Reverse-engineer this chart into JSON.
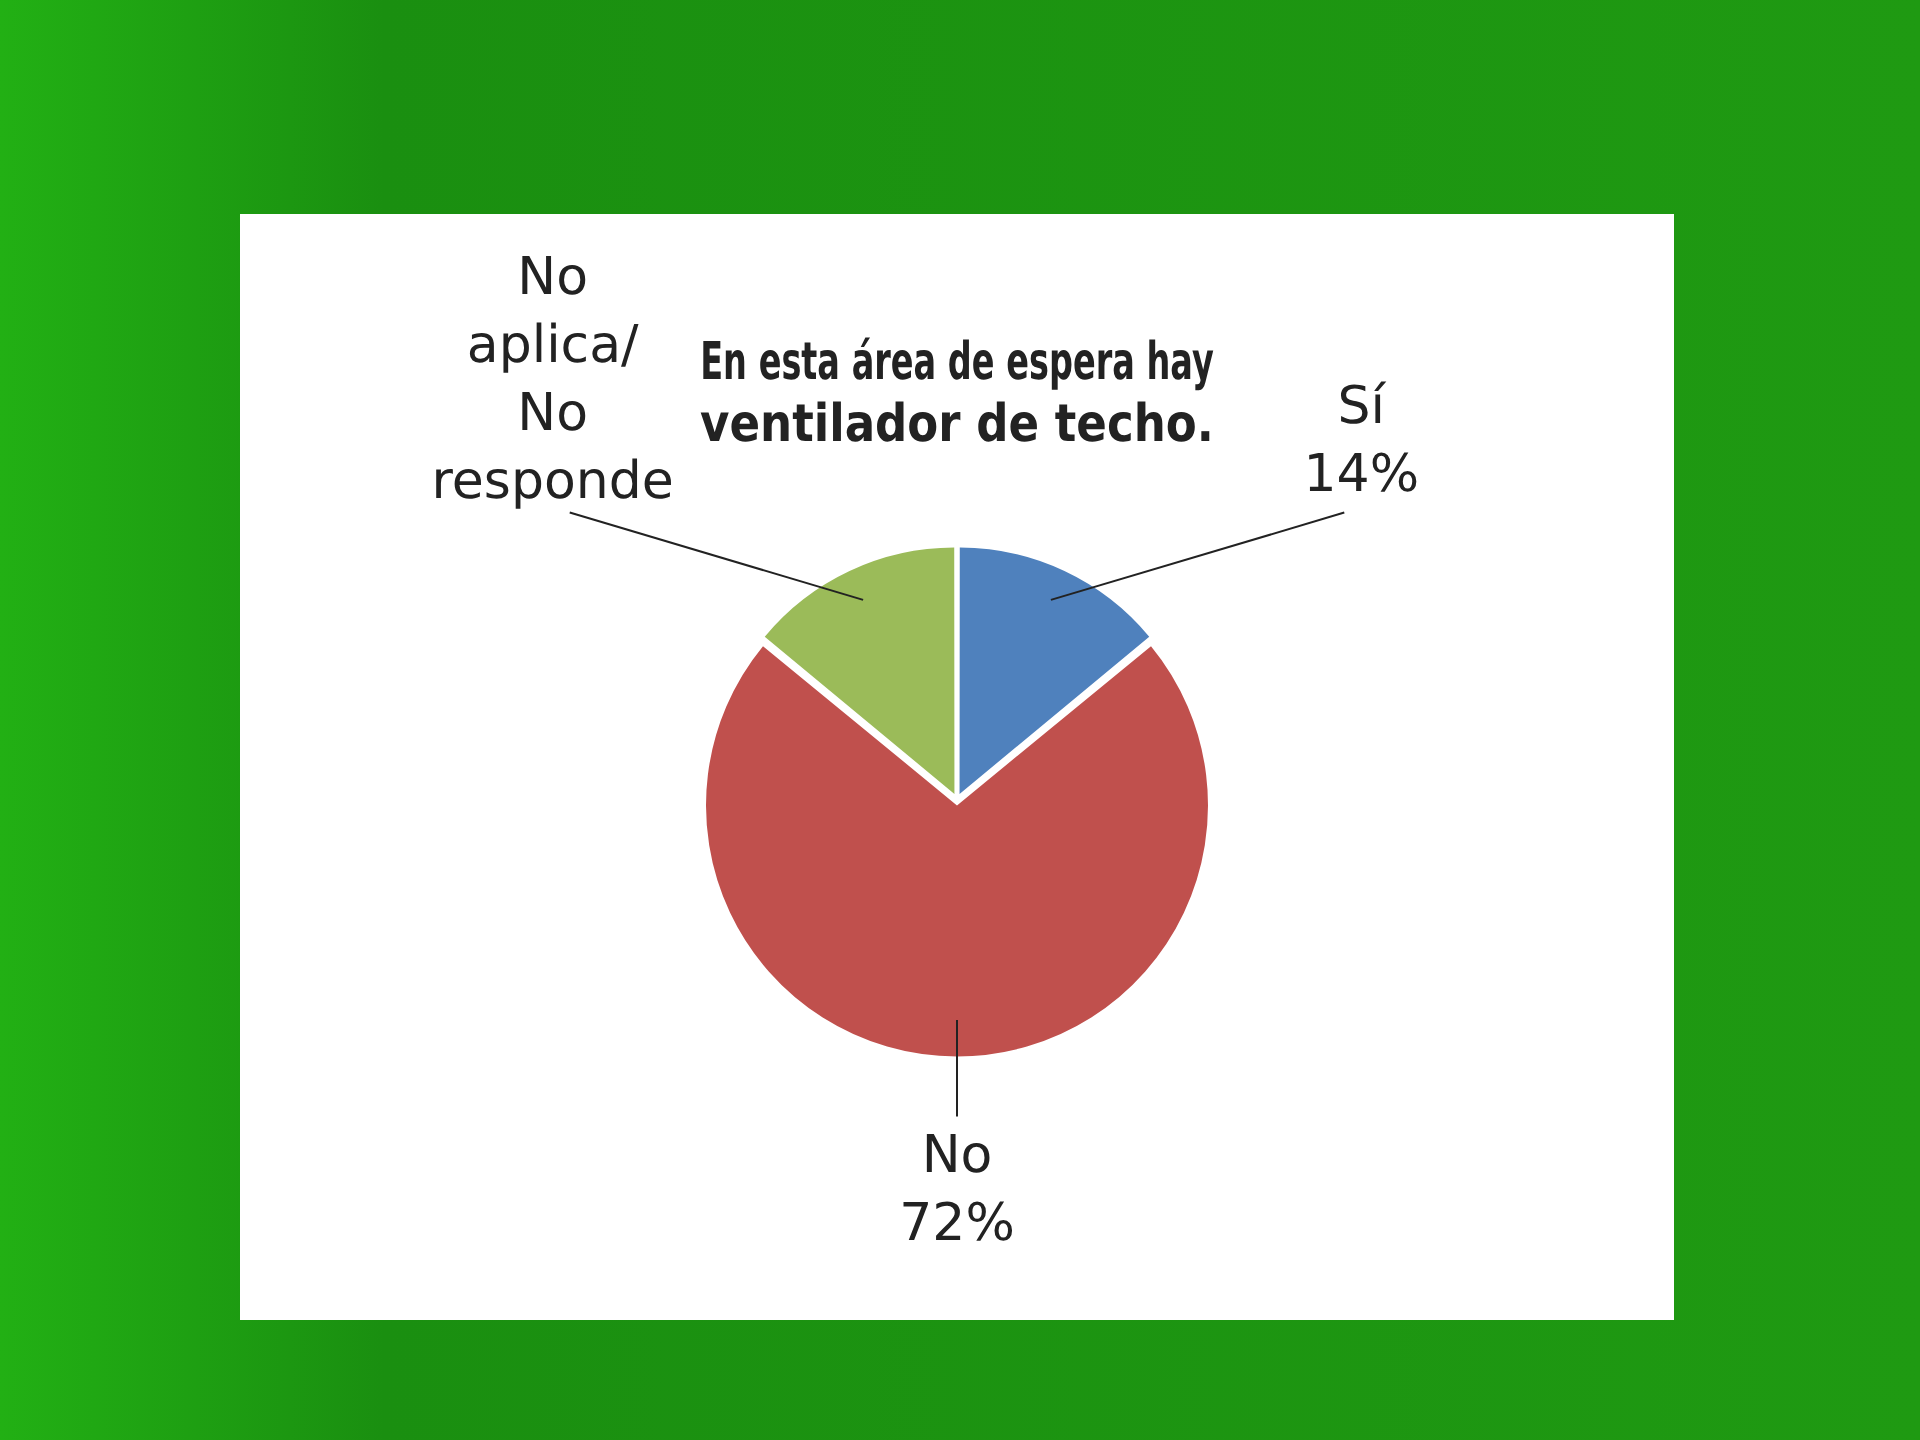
{
  "chart_data": {
    "type": "pie",
    "title": "En esta área de espera  hay ventilador de techo.",
    "categories": [
      "Sí",
      "No",
      "No aplica/No responde"
    ],
    "values": [
      14,
      72,
      14
    ],
    "value_labels": [
      "14%",
      "72%",
      null
    ],
    "colors": [
      "#4f81bd",
      "#c0504d",
      "#9bbb59"
    ],
    "legend": false
  }
}
